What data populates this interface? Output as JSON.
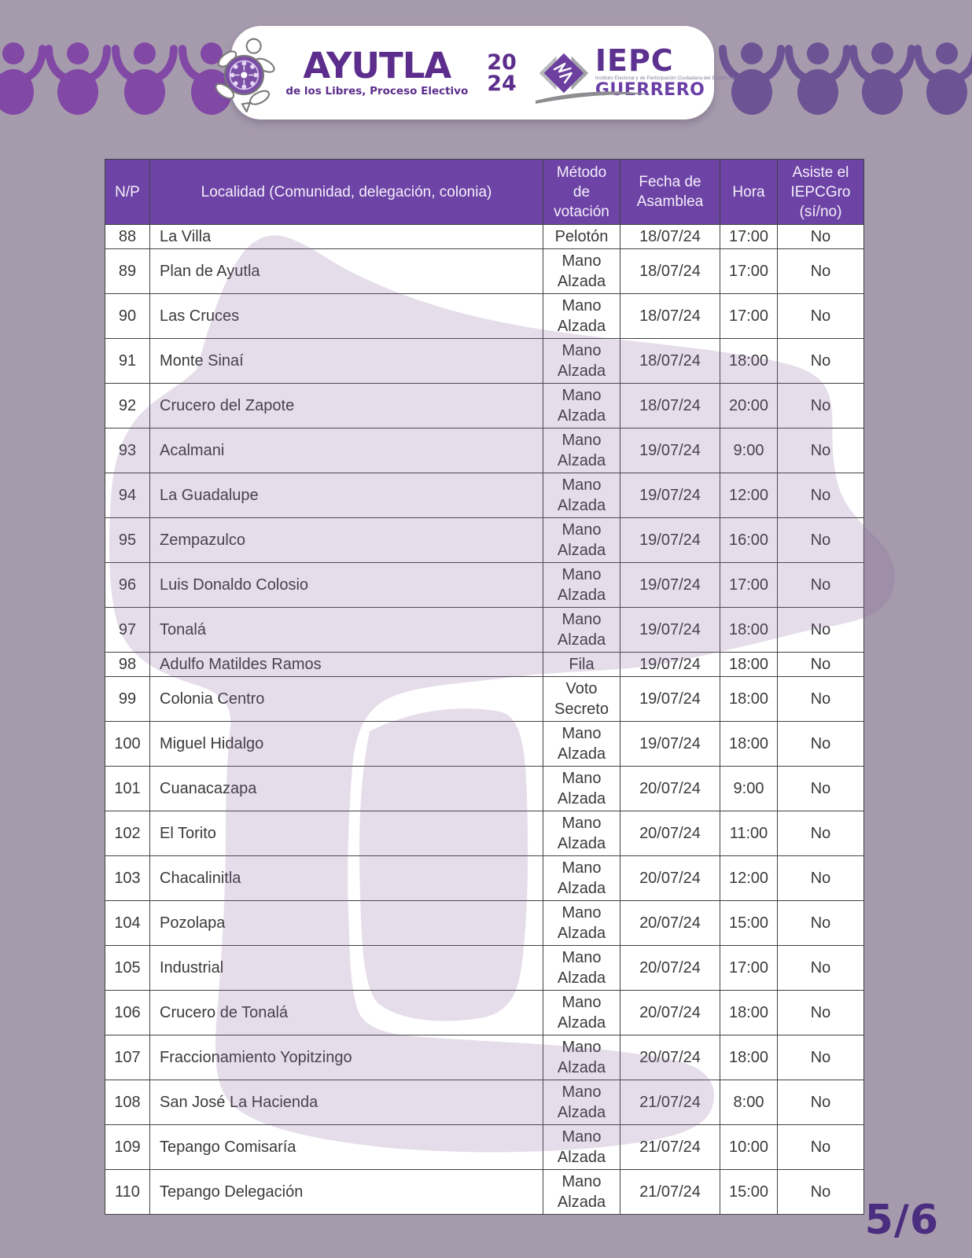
{
  "banner": {
    "ayutla_title": "AYUTLA",
    "ayutla_subtitle": "de los Libres, Proceso Electivo",
    "year_top": "20",
    "year_bottom": "24",
    "iepc_acronym": "IEPC",
    "iepc_small_text": "Instituto Electoral y de Participación Ciudadana del Estado de",
    "iepc_state": "GUERRERO"
  },
  "table": {
    "columns": [
      "N/P",
      "Localidad (Comunidad, delegación, colonia)",
      "Método de votación",
      "Fecha de Asamblea",
      "Hora",
      "Asiste el IEPCGro (sí/no)"
    ],
    "rows": [
      {
        "np": "88",
        "localidad": "La Villa",
        "metodo": "Pelotón",
        "fecha": "18/07/24",
        "hora": "17:00",
        "asiste": "No"
      },
      {
        "np": "89",
        "localidad": "Plan de Ayutla",
        "metodo": "Mano Alzada",
        "fecha": "18/07/24",
        "hora": "17:00",
        "asiste": "No"
      },
      {
        "np": "90",
        "localidad": "Las Cruces",
        "metodo": "Mano Alzada",
        "fecha": "18/07/24",
        "hora": "17:00",
        "asiste": "No"
      },
      {
        "np": "91",
        "localidad": "Monte Sinaí",
        "metodo": "Mano Alzada",
        "fecha": "18/07/24",
        "hora": "18:00",
        "asiste": "No"
      },
      {
        "np": "92",
        "localidad": "Crucero del Zapote",
        "metodo": "Mano Alzada",
        "fecha": "18/07/24",
        "hora": "20:00",
        "asiste": "No"
      },
      {
        "np": "93",
        "localidad": "Acalmani",
        "metodo": "Mano Alzada",
        "fecha": "19/07/24",
        "hora": "9:00",
        "asiste": "No"
      },
      {
        "np": "94",
        "localidad": "La Guadalupe",
        "metodo": "Mano Alzada",
        "fecha": "19/07/24",
        "hora": "12:00",
        "asiste": "No"
      },
      {
        "np": "95",
        "localidad": "Zempazulco",
        "metodo": "Mano Alzada",
        "fecha": "19/07/24",
        "hora": "16:00",
        "asiste": "No"
      },
      {
        "np": "96",
        "localidad": "Luis Donaldo Colosio",
        "metodo": "Mano Alzada",
        "fecha": "19/07/24",
        "hora": "17:00",
        "asiste": "No"
      },
      {
        "np": "97",
        "localidad": "Tonalá",
        "metodo": "Mano Alzada",
        "fecha": "19/07/24",
        "hora": "18:00",
        "asiste": "No"
      },
      {
        "np": "98",
        "localidad": "Adulfo Matildes Ramos",
        "metodo": "Fila",
        "fecha": "19/07/24",
        "hora": "18:00",
        "asiste": "No"
      },
      {
        "np": "99",
        "localidad": "Colonia Centro",
        "metodo": "Voto Secreto",
        "fecha": "19/07/24",
        "hora": "18:00",
        "asiste": "No"
      },
      {
        "np": "100",
        "localidad": "Miguel Hidalgo",
        "metodo": "Mano Alzada",
        "fecha": "19/07/24",
        "hora": "18:00",
        "asiste": "No"
      },
      {
        "np": "101",
        "localidad": "Cuanacazapa",
        "metodo": "Mano Alzada",
        "fecha": "20/07/24",
        "hora": "9:00",
        "asiste": "No"
      },
      {
        "np": "102",
        "localidad": "El Torito",
        "metodo": "Mano Alzada",
        "fecha": "20/07/24",
        "hora": "11:00",
        "asiste": "No"
      },
      {
        "np": "103",
        "localidad": "Chacalinitla",
        "metodo": "Mano Alzada",
        "fecha": "20/07/24",
        "hora": "12:00",
        "asiste": "No"
      },
      {
        "np": "104",
        "localidad": "Pozolapa",
        "metodo": "Mano Alzada",
        "fecha": "20/07/24",
        "hora": "15:00",
        "asiste": "No"
      },
      {
        "np": "105",
        "localidad": "Industrial",
        "metodo": "Mano Alzada",
        "fecha": "20/07/24",
        "hora": "17:00",
        "asiste": "No"
      },
      {
        "np": "106",
        "localidad": "Crucero de Tonalá",
        "metodo": "Mano Alzada",
        "fecha": "20/07/24",
        "hora": "18:00",
        "asiste": "No"
      },
      {
        "np": "107",
        "localidad": "Fraccionamiento Yopitzingo",
        "metodo": "Mano Alzada",
        "fecha": "20/07/24",
        "hora": "18:00",
        "asiste": "No"
      },
      {
        "np": "108",
        "localidad": "San José La Hacienda",
        "metodo": "Mano Alzada",
        "fecha": "21/07/24",
        "hora": "8:00",
        "asiste": "No"
      },
      {
        "np": "109",
        "localidad": "Tepango Comisaría",
        "metodo": "Mano Alzada",
        "fecha": "21/07/24",
        "hora": "10:00",
        "asiste": "No"
      },
      {
        "np": "110",
        "localidad": "Tepango Delegación",
        "metodo": "Mano Alzada",
        "fecha": "21/07/24",
        "hora": "15:00",
        "asiste": "No"
      }
    ]
  },
  "page": {
    "number_label": "5/6"
  },
  "colors": {
    "page_background": "#a69bad",
    "table_header_purple": "#6d44a5",
    "brand_purple": "#5c2d8c",
    "figures_left_purple": "#8148a5",
    "figures_right_purple": "#6c5394",
    "watermark_purple": "#835f96",
    "page_number_purple": "#4b2d7f"
  }
}
